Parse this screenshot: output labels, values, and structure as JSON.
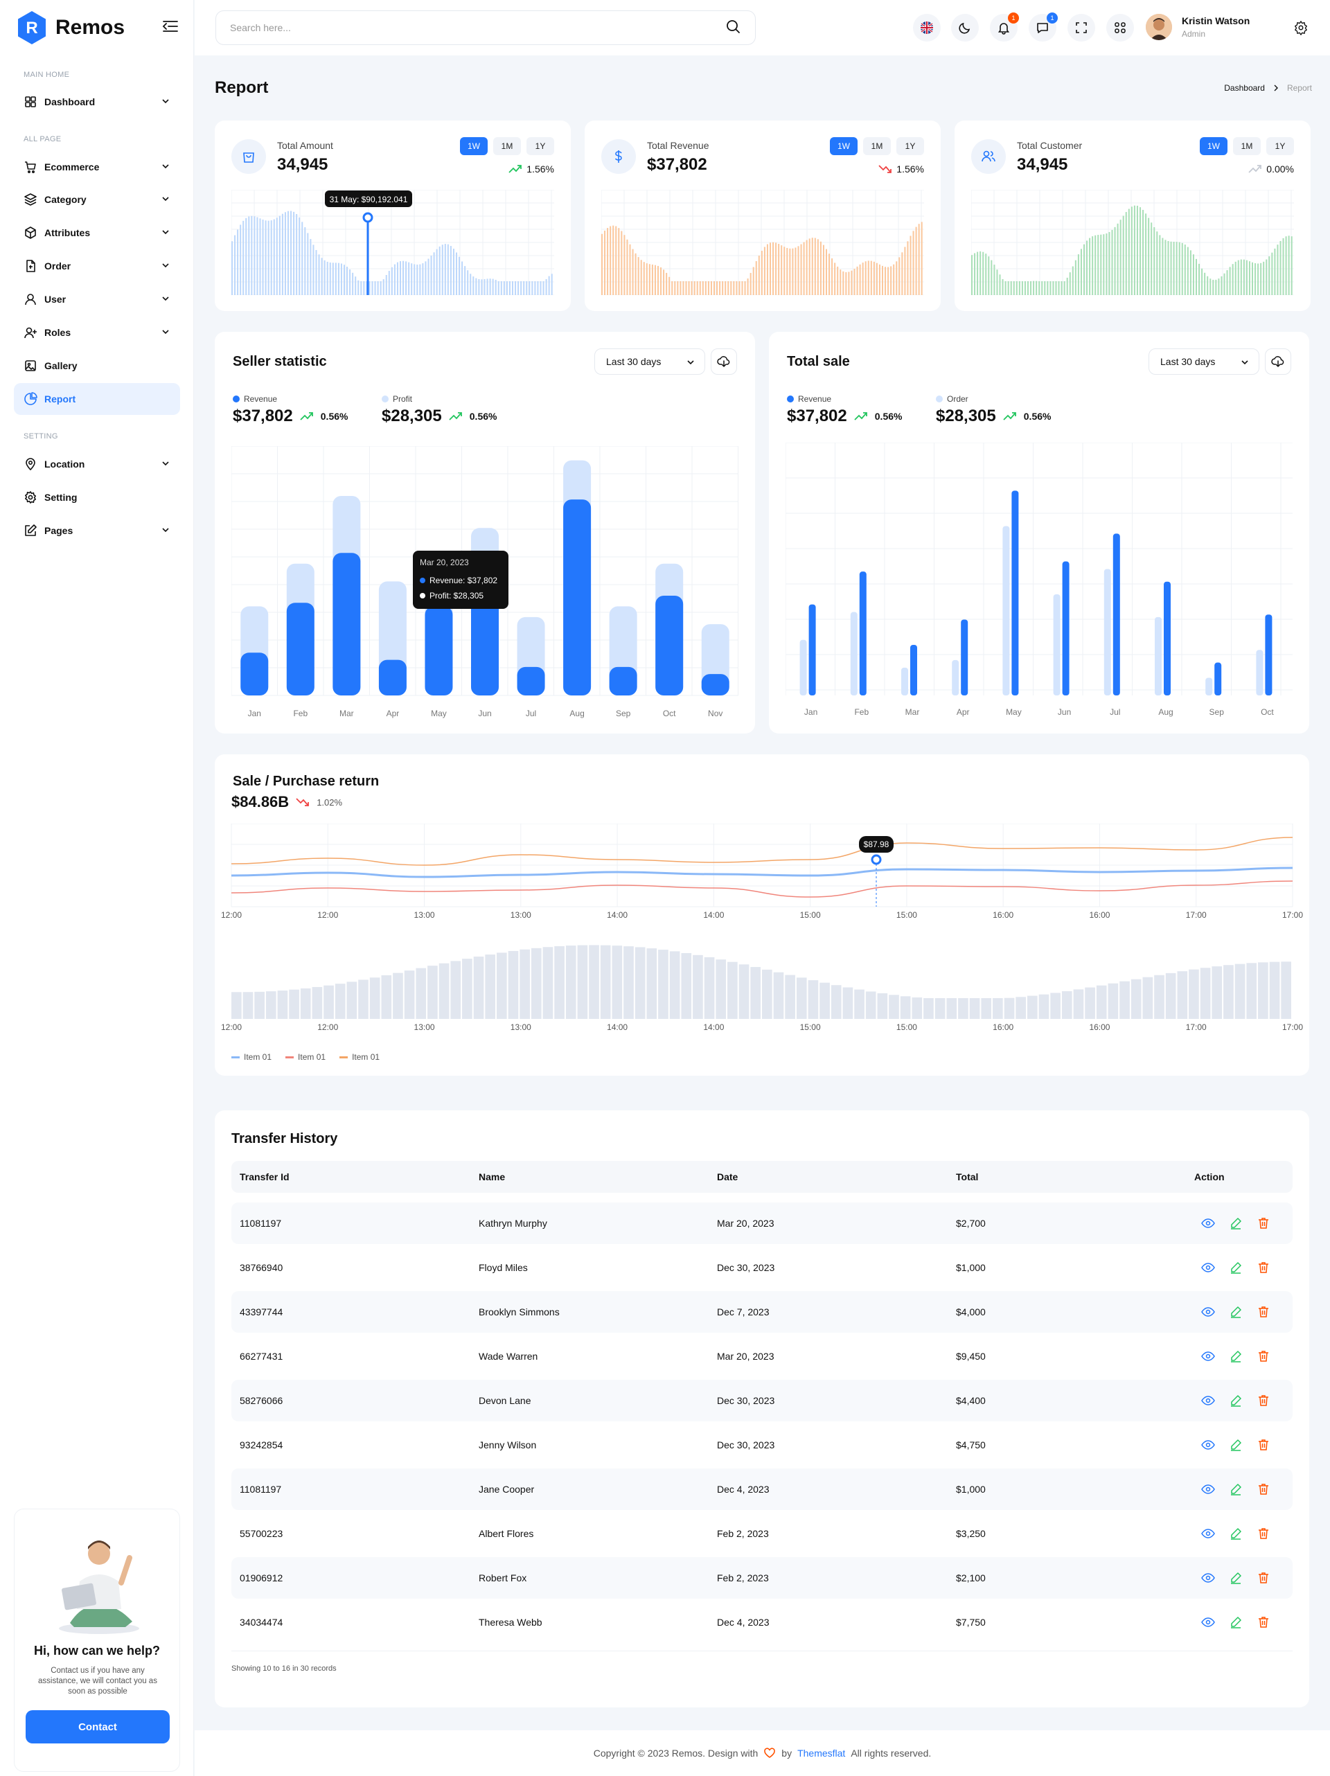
{
  "sidebar": {
    "logo": "Remos",
    "sections": {
      "main": "MAIN HOME",
      "all": "ALL PAGE",
      "setting": "SETTING"
    },
    "items": [
      {
        "label": "Dashboard",
        "icon": "grid-icon",
        "chevron": true
      },
      {
        "label": "Ecommerce",
        "icon": "cart-icon",
        "chevron": true
      },
      {
        "label": "Category",
        "icon": "layers-icon",
        "chevron": true
      },
      {
        "label": "Attributes",
        "icon": "box-icon",
        "chevron": true
      },
      {
        "label": "Order",
        "icon": "file-icon",
        "chevron": true
      },
      {
        "label": "User",
        "icon": "user-icon",
        "chevron": true
      },
      {
        "label": "Roles",
        "icon": "user-plus-icon",
        "chevron": true
      },
      {
        "label": "Gallery",
        "icon": "image-icon",
        "chevron": false
      },
      {
        "label": "Report",
        "icon": "pie-icon",
        "chevron": false,
        "active": true
      },
      {
        "label": "Location",
        "icon": "pin-icon",
        "chevron": true
      },
      {
        "label": "Setting",
        "icon": "gear-icon",
        "chevron": false
      },
      {
        "label": "Pages",
        "icon": "edit-icon",
        "chevron": true
      }
    ],
    "help": {
      "title": "Hi, how can we help?",
      "text": "Contact us if you have any assistance, we will contact you as soon as possible",
      "button": "Contact"
    }
  },
  "header": {
    "search_placeholder": "Search here...",
    "notif_count": "1",
    "msg_count": "1",
    "user_name": "Kristin Watson",
    "user_role": "Admin"
  },
  "page": {
    "title": "Report",
    "breadcrumb": [
      "Dashboard",
      "Report"
    ]
  },
  "stats": [
    {
      "label": "Total Amount",
      "value": "34,945",
      "ranges": [
        "1W",
        "1M",
        "1Y"
      ],
      "trend": "1.56%",
      "direction": "up",
      "color": "#bcd7fb",
      "tooltip": "31 May: $90,192.041"
    },
    {
      "label": "Total Revenue",
      "value": "$37,802",
      "ranges": [
        "1W",
        "1M",
        "1Y"
      ],
      "trend": "1.56%",
      "direction": "down",
      "color": "#fbc79c"
    },
    {
      "label": "Total Customer",
      "value": "34,945",
      "ranges": [
        "1W",
        "1M",
        "1Y"
      ],
      "trend": "0.00%",
      "direction": "flat",
      "color": "#a9dfb7"
    }
  ],
  "seller": {
    "title": "Seller statistic",
    "dropdown": "Last 30 days",
    "legend": [
      {
        "name": "Revenue",
        "value": "$37,802",
        "trend": "0.56%"
      },
      {
        "name": "Profit",
        "value": "$28,305",
        "trend": "0.56%"
      }
    ],
    "tooltip": {
      "date": "Mar 20, 2023",
      "revenue": "Revenue: $37,802",
      "profit": "Profit: $28,305"
    }
  },
  "totalsale": {
    "title": "Total sale",
    "dropdown": "Last 30 days",
    "legend": [
      {
        "name": "Revenue",
        "value": "$37,802",
        "trend": "0.56%"
      },
      {
        "name": "Order",
        "value": "$28,305",
        "trend": "0.56%"
      }
    ]
  },
  "salereturn": {
    "title": "Sale / Purchase return",
    "value": "$84.86B",
    "trend": "1.02%",
    "tooltip": "$87.98",
    "legend": [
      "Item 01",
      "Item 01",
      "Item 01"
    ]
  },
  "chart_data": [
    {
      "type": "bar",
      "title": "Seller statistic",
      "categories": [
        "Jan",
        "Feb",
        "Mar",
        "Apr",
        "May",
        "Jun",
        "Jul",
        "Aug",
        "Sep",
        "Oct",
        "Nov"
      ],
      "series": [
        {
          "name": "Revenue",
          "values": [
            12,
            26,
            40,
            10,
            25,
            35,
            8,
            55,
            8,
            28,
            6
          ]
        },
        {
          "name": "Profit",
          "values": [
            25,
            37,
            56,
            32,
            38,
            47,
            22,
            66,
            25,
            37,
            20
          ]
        }
      ],
      "ylim": [
        0,
        70
      ]
    },
    {
      "type": "bar",
      "title": "Total sale",
      "categories": [
        "Jan",
        "Feb",
        "Mar",
        "Apr",
        "May",
        "Jun",
        "Jul",
        "Aug",
        "Sep",
        "Oct"
      ],
      "series": [
        {
          "name": "Revenue",
          "values": [
            36,
            49,
            20,
            30,
            81,
            53,
            64,
            45,
            13,
            32
          ]
        },
        {
          "name": "Order",
          "values": [
            22,
            33,
            11,
            14,
            67,
            40,
            50,
            31,
            7,
            18
          ]
        }
      ],
      "ylim": [
        0,
        100
      ]
    },
    {
      "type": "line",
      "title": "Sale / Purchase return",
      "x": [
        "12:00",
        "12:00",
        "13:00",
        "13:00",
        "14:00",
        "14:00",
        "15:00",
        "15:00",
        "16:00",
        "16:00",
        "17:00",
        "17:00"
      ],
      "series": [
        {
          "name": "Item 01",
          "values": [
            45,
            49,
            43,
            46,
            50,
            47,
            45,
            54,
            53,
            50,
            52,
            56
          ]
        },
        {
          "name": "Item 01",
          "values": [
            20,
            27,
            22,
            24,
            31,
            27,
            14,
            30,
            29,
            23,
            31,
            37
          ]
        },
        {
          "name": "Item 01",
          "values": [
            62,
            70,
            60,
            75,
            68,
            64,
            68,
            92,
            84,
            85,
            82,
            100
          ]
        }
      ],
      "ylim": [
        0,
        120
      ]
    },
    {
      "type": "bar",
      "title": "Sale / Purchase return volume",
      "x": [
        "12:00",
        "12:00",
        "13:00",
        "13:00",
        "14:00",
        "14:00",
        "15:00",
        "15:00",
        "16:00",
        "16:00",
        "17:00",
        "17:00"
      ],
      "ylim": [
        0,
        100
      ]
    }
  ],
  "transfer": {
    "title": "Transfer History",
    "columns": [
      "Transfer Id",
      "Name",
      "Date",
      "Total",
      "Action"
    ],
    "rows": [
      [
        "11081197",
        "Kathryn Murphy",
        "Mar 20, 2023",
        "$2,700"
      ],
      [
        "38766940",
        "Floyd Miles",
        "Dec 30, 2023",
        "$1,000"
      ],
      [
        "43397744",
        "Brooklyn Simmons",
        "Dec 7, 2023",
        "$4,000"
      ],
      [
        "66277431",
        "Wade Warren",
        "Mar 20, 2023",
        "$9,450"
      ],
      [
        "58276066",
        "Devon Lane",
        "Dec 30, 2023",
        "$4,400"
      ],
      [
        "93242854",
        "Jenny Wilson",
        "Dec 30, 2023",
        "$4,750"
      ],
      [
        "11081197",
        "Jane Cooper",
        "Dec 4, 2023",
        "$1,000"
      ],
      [
        "55700223",
        "Albert Flores",
        "Feb 2, 2023",
        "$3,250"
      ],
      [
        "01906912",
        "Robert Fox",
        "Feb 2, 2023",
        "$2,100"
      ],
      [
        "34034474",
        "Theresa Webb",
        "Dec 4, 2023",
        "$7,750"
      ]
    ],
    "footer": "Showing 10 to 16 in 30 records"
  },
  "footer": {
    "text1": "Copyright © 2023 Remos. Design with",
    "by": "by",
    "brand": "Themesflat",
    "text2": "All rights reserved."
  },
  "colors": {
    "accent": "#2377fc",
    "light": "#d3e4fd"
  }
}
